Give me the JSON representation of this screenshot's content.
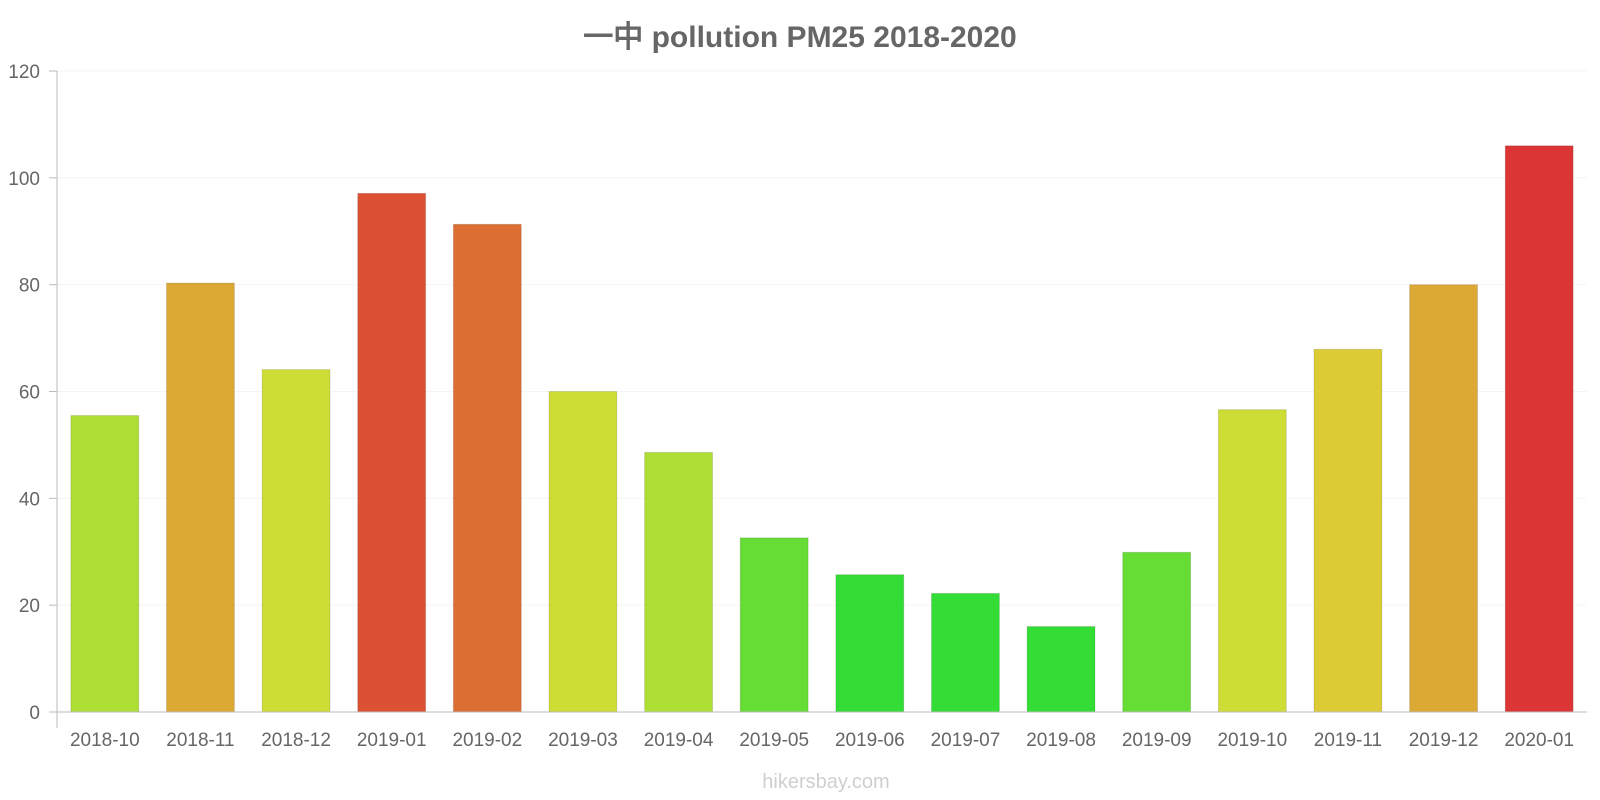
{
  "chart_data": {
    "type": "bar",
    "title": "一中 pollution PM25 2018-2020",
    "xlabel": "",
    "ylabel": "",
    "ylim": [
      0,
      120
    ],
    "yticks": [
      0,
      20,
      40,
      60,
      80,
      100,
      120
    ],
    "grid": true,
    "legend": "none",
    "categories": [
      "2018-10",
      "2018-11",
      "2018-12",
      "2019-01",
      "2019-02",
      "2019-03",
      "2019-04",
      "2019-05",
      "2019-06",
      "2019-07",
      "2019-08",
      "2019-09",
      "2019-10",
      "2019-11",
      "2019-12",
      "2020-01"
    ],
    "values": [
      55.5,
      80.3,
      64.1,
      97.1,
      91.3,
      60.0,
      48.6,
      32.6,
      25.7,
      22.2,
      16.0,
      29.9,
      56.6,
      67.9,
      80.0,
      106.0
    ],
    "colors": [
      "#acde34",
      "#dca935",
      "#cedd35",
      "#dc5034",
      "#dd6e33",
      "#cedd35",
      "#acde34",
      "#66dd35",
      "#33dd35",
      "#33dd35",
      "#33dd35",
      "#66dd35",
      "#cedd35",
      "#dccb35",
      "#dca935",
      "#db3535"
    ],
    "source": "hikersbay.com"
  }
}
